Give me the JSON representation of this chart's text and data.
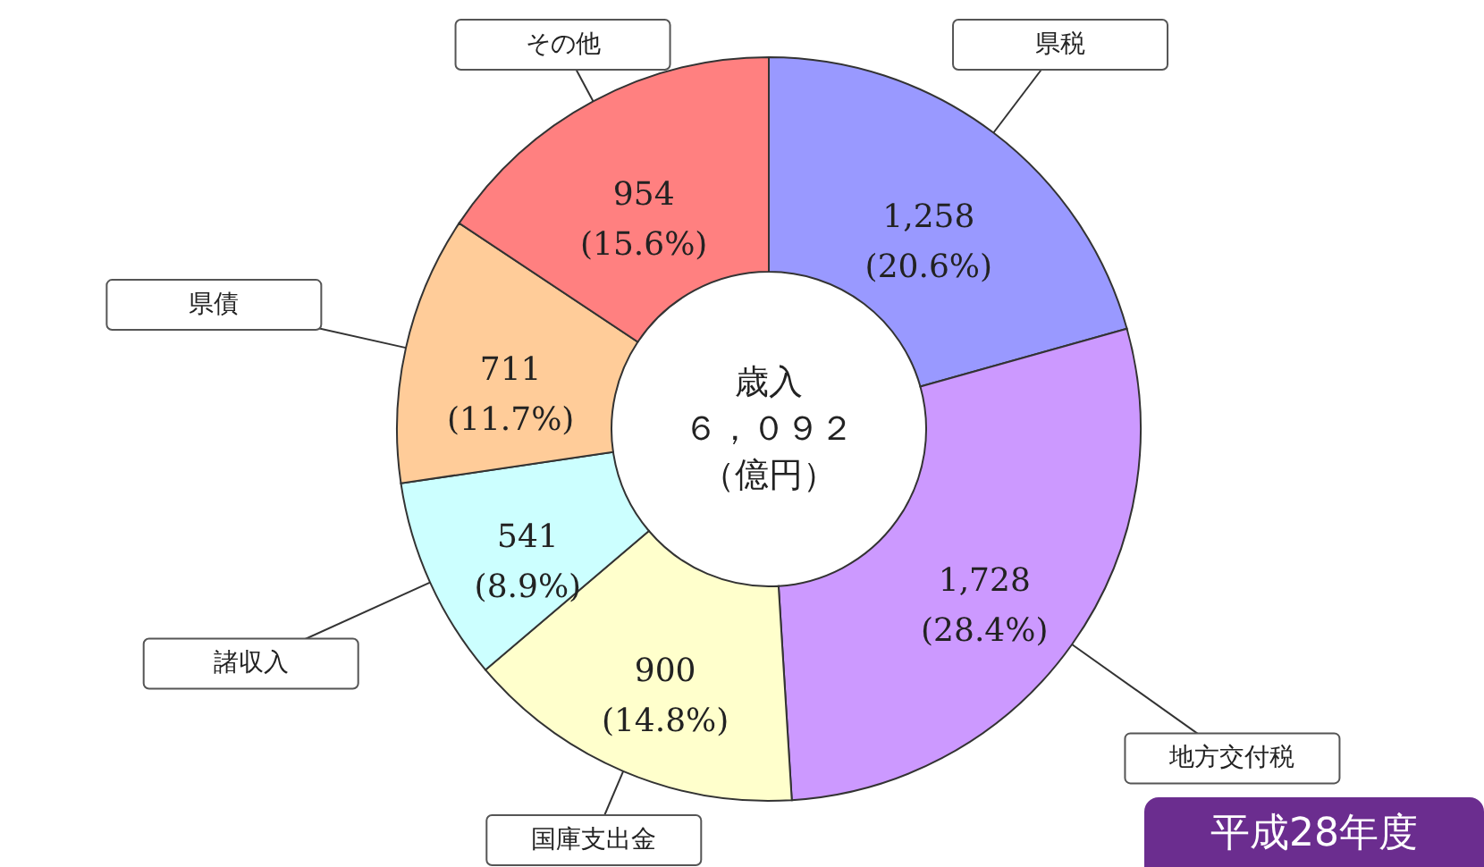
{
  "chart_data": {
    "type": "donut",
    "categories": [
      "県税",
      "地方交付税",
      "国庫支出金",
      "諸収入",
      "県債",
      "その他"
    ],
    "values": [
      1258,
      1728,
      900,
      541,
      711,
      954
    ],
    "colors": [
      "#9999ff",
      "#cc99ff",
      "#ffffcc",
      "#ccffff",
      "#ffcc99",
      "#ff8080"
    ],
    "value_labels": [
      "1,258\n(20.6%)",
      "1,728\n(28.4%)",
      "900\n(14.8%)",
      "541\n(8.9%)",
      "711\n(11.7%)",
      "954\n(15.6%)"
    ],
    "annotations": [
      "歳入",
      "６，０９２",
      "（億円）",
      "平成28年度"
    ]
  }
}
